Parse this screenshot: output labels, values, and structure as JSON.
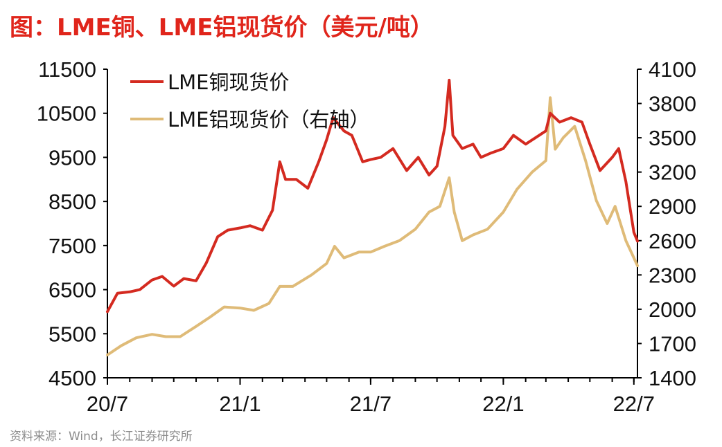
{
  "title": "图：LME铜、LME铝现货价（美元/吨）",
  "source": "资料来源：Wind，长江证券研究所",
  "colors": {
    "copper": "#d42a20",
    "aluminum": "#dfbb78",
    "title": "#e0251b"
  },
  "chart_data": {
    "type": "line",
    "title": "图：LME铜、LME铝现货价（美元/吨）",
    "x_tick_labels": [
      "20/7",
      "21/1",
      "21/7",
      "22/1",
      "22/7"
    ],
    "x_range": [
      "2020-07-01",
      "2022-07-06"
    ],
    "y_left": {
      "ticks": [
        4500,
        5500,
        6500,
        7500,
        8500,
        9500,
        10500,
        11500
      ],
      "ylim": [
        4500,
        11500
      ]
    },
    "y_right": {
      "ticks": [
        1400,
        1700,
        2000,
        2300,
        2600,
        2900,
        3200,
        3500,
        3800,
        4100
      ],
      "ylim": [
        1400,
        4100
      ]
    },
    "legend": {
      "position": "top-left"
    },
    "series": [
      {
        "name": "LME铜现货价",
        "axis": "left",
        "points": [
          [
            "2020-07-01",
            6000
          ],
          [
            "2020-07-15",
            6420
          ],
          [
            "2020-08-01",
            6450
          ],
          [
            "2020-08-15",
            6500
          ],
          [
            "2020-09-01",
            6720
          ],
          [
            "2020-09-15",
            6800
          ],
          [
            "2020-10-01",
            6580
          ],
          [
            "2020-10-15",
            6750
          ],
          [
            "2020-11-01",
            6700
          ],
          [
            "2020-11-15",
            7100
          ],
          [
            "2020-12-01",
            7700
          ],
          [
            "2020-12-15",
            7850
          ],
          [
            "2021-01-01",
            7900
          ],
          [
            "2021-01-15",
            7950
          ],
          [
            "2021-02-01",
            7850
          ],
          [
            "2021-02-15",
            8300
          ],
          [
            "2021-02-25",
            9400
          ],
          [
            "2021-03-05",
            9000
          ],
          [
            "2021-03-20",
            9000
          ],
          [
            "2021-04-05",
            8800
          ],
          [
            "2021-04-20",
            9400
          ],
          [
            "2021-05-01",
            9900
          ],
          [
            "2021-05-10",
            10400
          ],
          [
            "2021-05-25",
            10100
          ],
          [
            "2021-06-05",
            10000
          ],
          [
            "2021-06-20",
            9400
          ],
          [
            "2021-07-01",
            9450
          ],
          [
            "2021-07-15",
            9500
          ],
          [
            "2021-08-01",
            9700
          ],
          [
            "2021-08-20",
            9200
          ],
          [
            "2021-09-05",
            9500
          ],
          [
            "2021-09-20",
            9100
          ],
          [
            "2021-10-01",
            9300
          ],
          [
            "2021-10-12",
            10200
          ],
          [
            "2021-10-18",
            11250
          ],
          [
            "2021-10-23",
            10000
          ],
          [
            "2021-11-05",
            9700
          ],
          [
            "2021-11-20",
            9800
          ],
          [
            "2021-12-01",
            9500
          ],
          [
            "2021-12-15",
            9600
          ],
          [
            "2022-01-01",
            9700
          ],
          [
            "2022-01-15",
            10000
          ],
          [
            "2022-02-01",
            9800
          ],
          [
            "2022-02-15",
            9950
          ],
          [
            "2022-03-01",
            10100
          ],
          [
            "2022-03-07",
            10500
          ],
          [
            "2022-03-20",
            10300
          ],
          [
            "2022-04-05",
            10400
          ],
          [
            "2022-04-20",
            10300
          ],
          [
            "2022-05-01",
            9800
          ],
          [
            "2022-05-15",
            9200
          ],
          [
            "2022-06-01",
            9500
          ],
          [
            "2022-06-10",
            9700
          ],
          [
            "2022-06-20",
            8950
          ],
          [
            "2022-07-01",
            7800
          ],
          [
            "2022-07-06",
            7600
          ]
        ]
      },
      {
        "name": "LME铝现货价（右轴）",
        "axis": "right",
        "points": [
          [
            "2020-07-01",
            1600
          ],
          [
            "2020-07-20",
            1680
          ],
          [
            "2020-08-10",
            1750
          ],
          [
            "2020-09-01",
            1780
          ],
          [
            "2020-09-20",
            1760
          ],
          [
            "2020-10-10",
            1760
          ],
          [
            "2020-11-01",
            1850
          ],
          [
            "2020-11-20",
            1930
          ],
          [
            "2020-12-10",
            2020
          ],
          [
            "2021-01-01",
            2010
          ],
          [
            "2021-01-20",
            1990
          ],
          [
            "2021-02-10",
            2050
          ],
          [
            "2021-02-25",
            2200
          ],
          [
            "2021-03-15",
            2200
          ],
          [
            "2021-04-10",
            2300
          ],
          [
            "2021-05-01",
            2400
          ],
          [
            "2021-05-12",
            2550
          ],
          [
            "2021-05-25",
            2450
          ],
          [
            "2021-06-15",
            2500
          ],
          [
            "2021-07-01",
            2500
          ],
          [
            "2021-07-20",
            2550
          ],
          [
            "2021-08-10",
            2600
          ],
          [
            "2021-09-01",
            2700
          ],
          [
            "2021-09-20",
            2850
          ],
          [
            "2021-10-05",
            2900
          ],
          [
            "2021-10-18",
            3150
          ],
          [
            "2021-10-25",
            2850
          ],
          [
            "2021-11-05",
            2600
          ],
          [
            "2021-11-20",
            2650
          ],
          [
            "2021-12-10",
            2700
          ],
          [
            "2022-01-01",
            2850
          ],
          [
            "2022-01-20",
            3050
          ],
          [
            "2022-02-10",
            3200
          ],
          [
            "2022-03-01",
            3300
          ],
          [
            "2022-03-07",
            3850
          ],
          [
            "2022-03-14",
            3400
          ],
          [
            "2022-03-25",
            3500
          ],
          [
            "2022-04-10",
            3600
          ],
          [
            "2022-04-25",
            3300
          ],
          [
            "2022-05-10",
            2950
          ],
          [
            "2022-05-25",
            2750
          ],
          [
            "2022-06-05",
            2900
          ],
          [
            "2022-06-20",
            2600
          ],
          [
            "2022-07-01",
            2450
          ],
          [
            "2022-07-06",
            2380
          ]
        ]
      }
    ]
  }
}
